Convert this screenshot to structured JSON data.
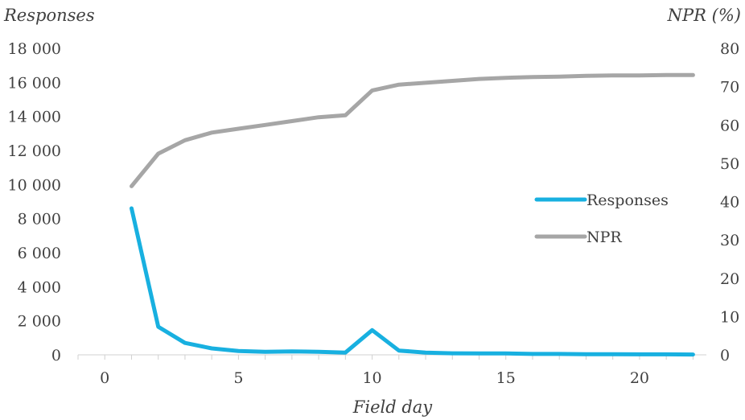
{
  "chart_data": {
    "type": "line",
    "xlabel": "Field day",
    "ylabel_left": "Responses",
    "ylabel_right": "NPR (%)",
    "xlim": [
      -1,
      22.5
    ],
    "ylim_left": [
      0,
      18000
    ],
    "ylim_right": [
      0,
      80
    ],
    "x_ticks": [
      0,
      5,
      10,
      15,
      20
    ],
    "y_left_ticks": [
      0,
      2000,
      4000,
      6000,
      8000,
      10000,
      12000,
      14000,
      16000,
      18000
    ],
    "y_left_tick_labels": [
      "0",
      "2 000",
      "4 000",
      "6 000",
      "8 000",
      "10 000",
      "12 000",
      "14 000",
      "16 000",
      "18 000"
    ],
    "y_right_ticks": [
      0,
      10,
      20,
      30,
      40,
      50,
      60,
      70,
      80
    ],
    "y_right_tick_labels": [
      "0",
      "10",
      "20",
      "30",
      "40",
      "50",
      "60",
      "70",
      "80"
    ],
    "x": [
      1,
      2,
      3,
      4,
      5,
      6,
      7,
      8,
      9,
      10,
      11,
      12,
      13,
      14,
      15,
      16,
      17,
      18,
      19,
      20,
      21,
      22
    ],
    "series": [
      {
        "name": "Responses",
        "axis": "left",
        "color": "#18b0e0",
        "values": [
          8600,
          1650,
          700,
          380,
          220,
          180,
          200,
          180,
          130,
          1450,
          250,
          130,
          90,
          80,
          80,
          50,
          50,
          40,
          40,
          30,
          30,
          20
        ]
      },
      {
        "name": "NPR",
        "axis": "right",
        "color": "#a6a6a6",
        "values": [
          44,
          52.5,
          56,
          58,
          59,
          60,
          61,
          62,
          62.5,
          69,
          70.5,
          71,
          71.5,
          72,
          72.3,
          72.5,
          72.6,
          72.8,
          72.9,
          72.9,
          73,
          73
        ]
      }
    ],
    "legend": {
      "position": "right-middle",
      "items": [
        "Responses",
        "NPR"
      ]
    },
    "grid": false
  }
}
